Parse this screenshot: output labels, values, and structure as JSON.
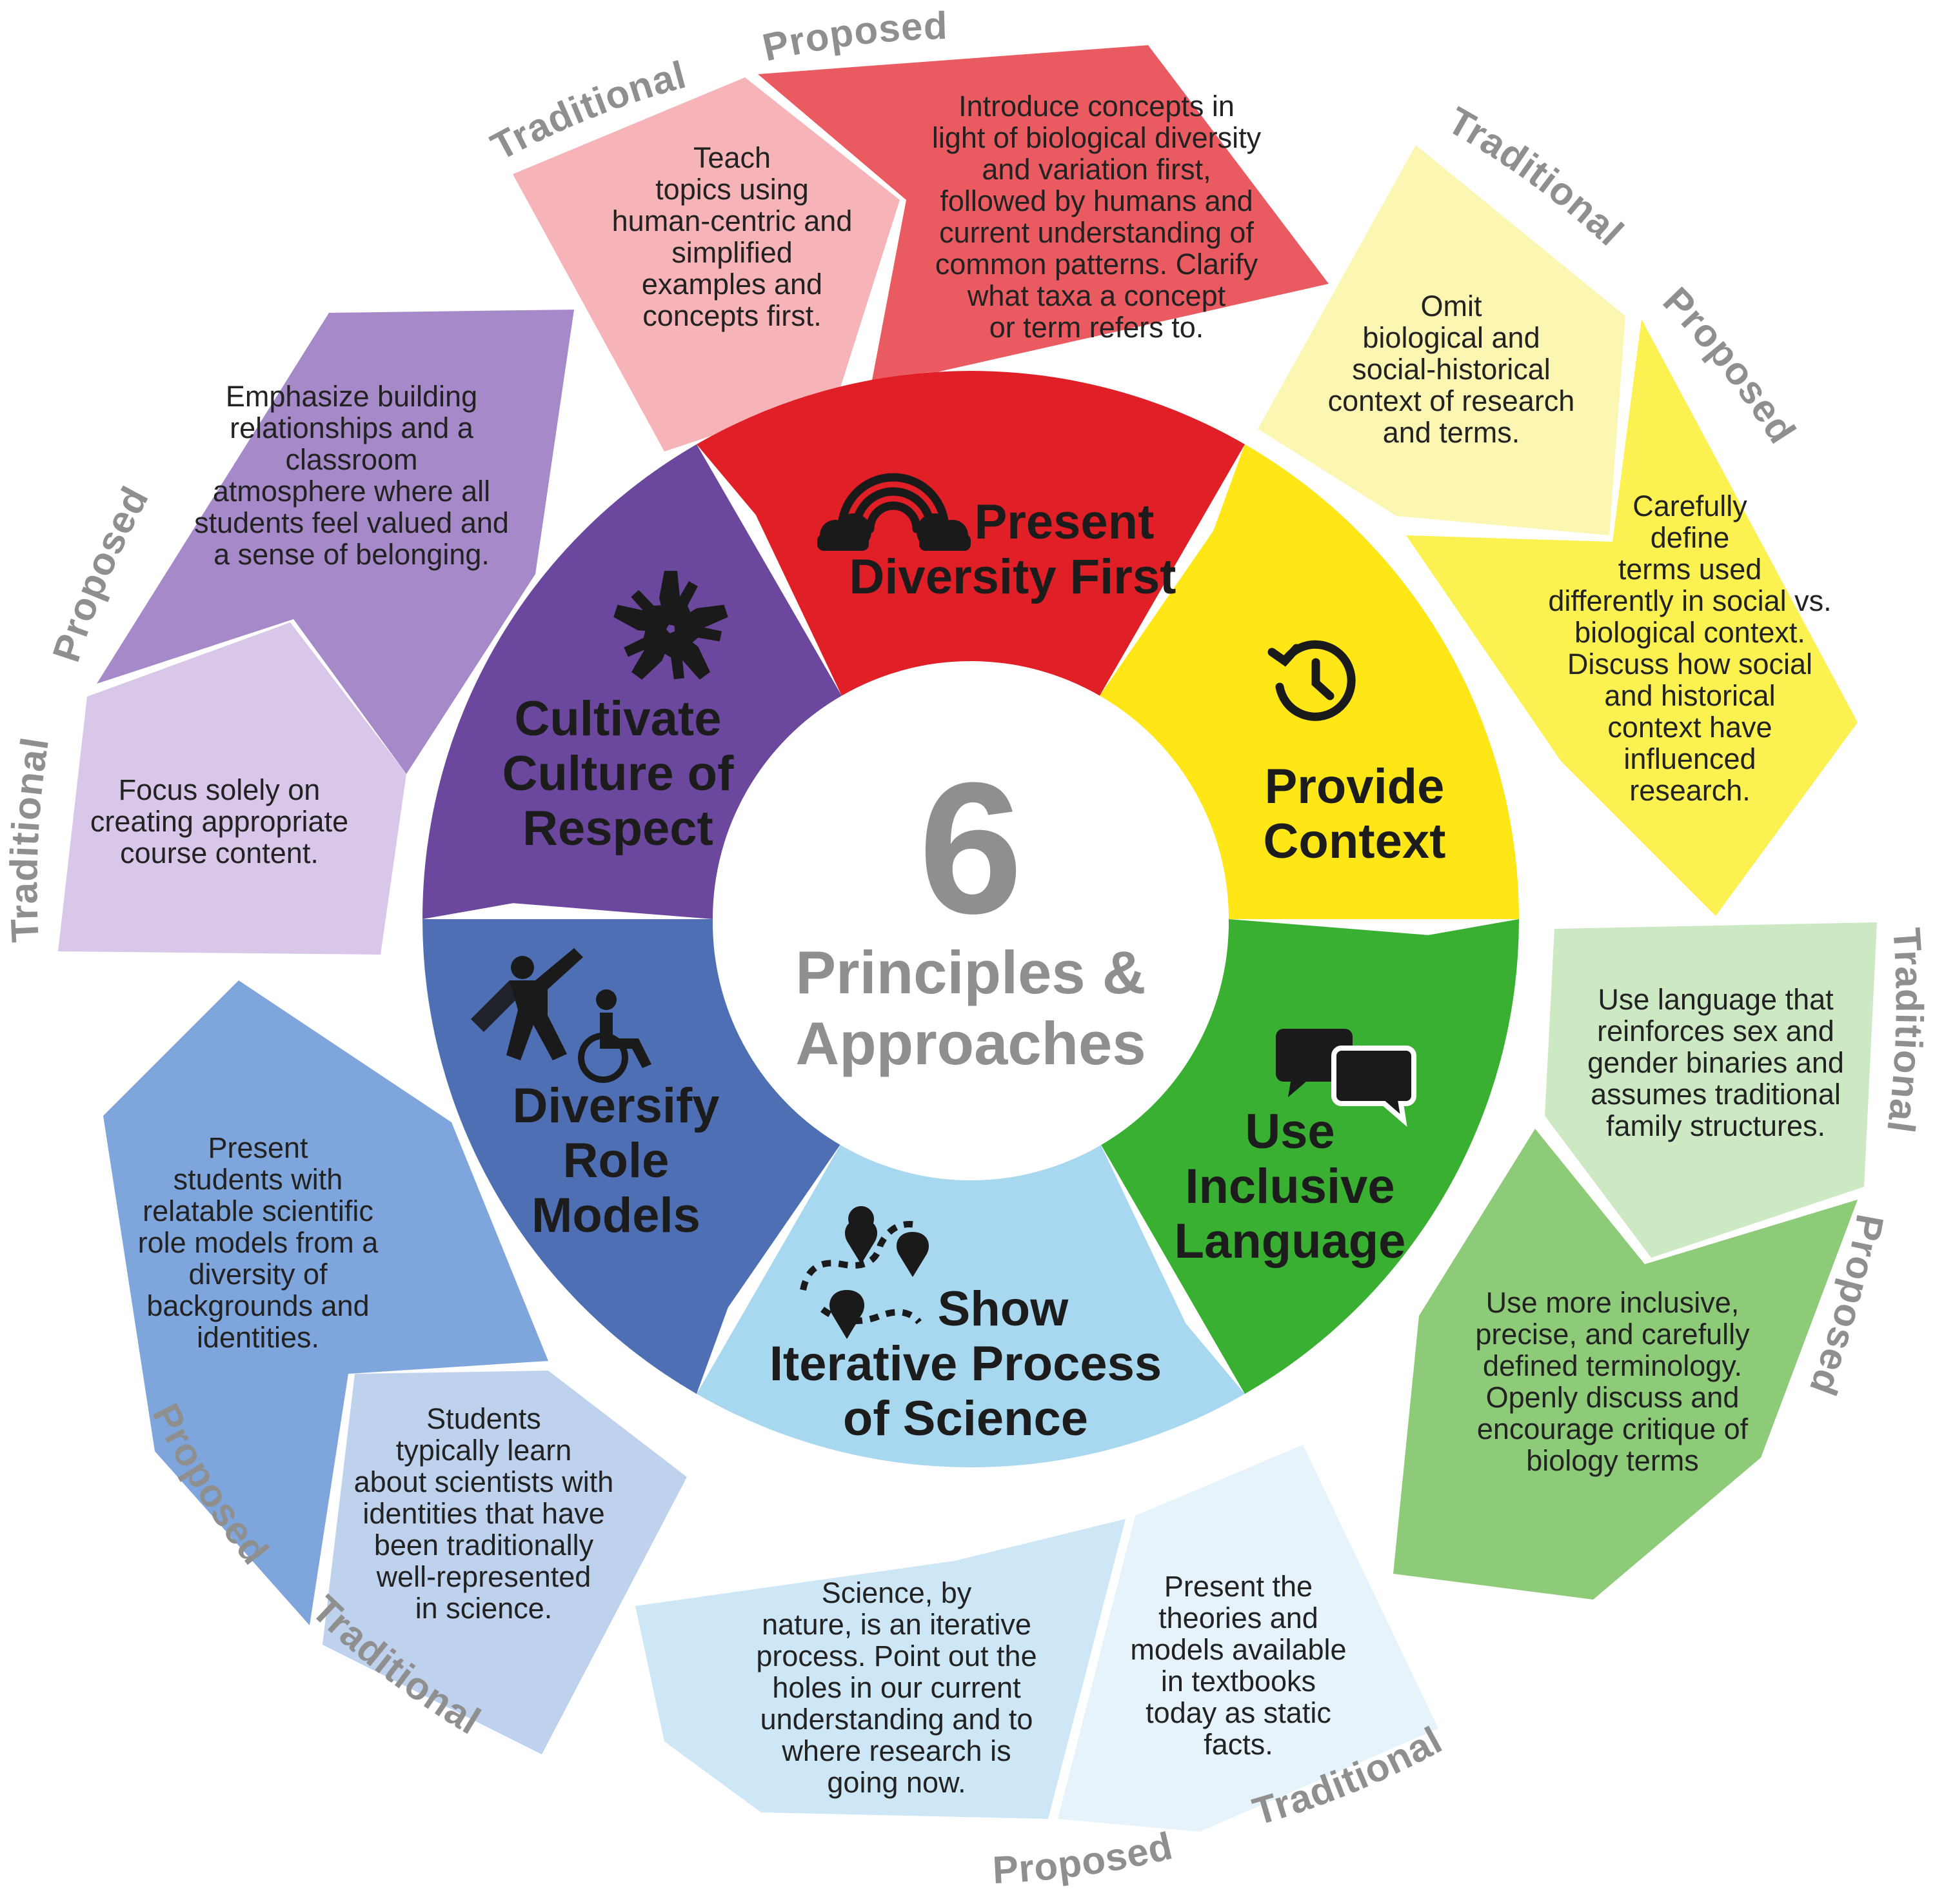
{
  "center": {
    "number": "6",
    "line1": "Principles &",
    "line2": "Approaches"
  },
  "labels": {
    "traditional": "Traditional",
    "proposed": "Proposed"
  },
  "principles": [
    {
      "id": "present-diversity-first",
      "title": [
        "Present",
        "Diversity First"
      ],
      "icon": "rainbow-cloud-icon",
      "color": "#e01f26",
      "traditional": {
        "color": "#f6b3b8",
        "text": [
          "Teach",
          "topics using",
          "human-centric and",
          "simplified",
          "examples and",
          "concepts first."
        ]
      },
      "proposed": {
        "color": "#ea5b61",
        "text": [
          "Introduce concepts in",
          "light of biological diversity",
          "and variation  first,",
          "followed by humans and",
          "current understanding of",
          "common patterns. Clarify",
          "what taxa a concept",
          "or term refers to."
        ]
      }
    },
    {
      "id": "provide-context",
      "title": [
        "Provide",
        "Context"
      ],
      "icon": "history-clock-icon",
      "color": "#ffe617",
      "traditional": {
        "color": "#fbf7b2",
        "text": [
          "Omit",
          "biological and",
          "social-historical",
          "context of research",
          "and terms."
        ]
      },
      "proposed": {
        "color": "#fbf150",
        "text": [
          "Carefully",
          "define",
          "terms used",
          "differently in social vs.",
          "biological context.",
          "Discuss how social",
          "and historical",
          "context have",
          "influenced",
          "research."
        ]
      }
    },
    {
      "id": "use-inclusive-language",
      "title": [
        "Use",
        "Inclusive",
        "Language"
      ],
      "icon": "speech-bubbles-icon",
      "color": "#3ab033",
      "traditional": {
        "color": "#cde9c3",
        "text": [
          "Use language that",
          "reinforces sex and",
          "gender binaries and",
          "assumes traditional",
          "family structures."
        ]
      },
      "proposed": {
        "color": "#8dcb78",
        "text": [
          "Use more inclusive,",
          "precise, and carefully",
          "defined terminology.",
          "Openly discuss and",
          "encourage critique of",
          "biology terms"
        ]
      }
    },
    {
      "id": "show-iterative-process",
      "title": [
        "Show",
        "Iterative Process",
        "of Science"
      ],
      "icon": "route-map-icon",
      "color": "#a8d8f0",
      "traditional": {
        "color": "#e6f3fb",
        "text": [
          "Present the",
          "theories and",
          "models available",
          "in textbooks",
          "today as static",
          "facts."
        ]
      },
      "proposed": {
        "color": "#cde7f7",
        "text": [
          "Science, by",
          "nature, is an iterative",
          "process. Point out the",
          "holes in our current",
          "understanding and to",
          "where research is",
          "going now."
        ]
      }
    },
    {
      "id": "diversify-role-models",
      "title": [
        "Diversify",
        "Role",
        "Models"
      ],
      "icon": "superhero-wheelchair-icon",
      "color": "#4f6fb4",
      "traditional": {
        "color": "#bed2ee",
        "text": [
          "Students",
          "typically learn",
          "about scientists with",
          "identities that have",
          "been traditionally",
          "well-represented",
          "in science."
        ]
      },
      "proposed": {
        "color": "#7fa6dc",
        "text": [
          "Present",
          "students with",
          "relatable scientific",
          "role models from a",
          "diversity of",
          "backgrounds and",
          "identities."
        ]
      }
    },
    {
      "id": "cultivate-culture-of-respect",
      "title": [
        "Cultivate",
        "Culture of",
        "Respect"
      ],
      "icon": "joined-hands-icon",
      "color": "#6b489d",
      "traditional": {
        "color": "#d8c7e9",
        "text": [
          "Focus solely on",
          "creating appropriate",
          "course content."
        ]
      },
      "proposed": {
        "color": "#a589c8",
        "text": [
          "Emphasize building",
          "relationships and a",
          "classroom",
          "atmosphere where all",
          "students feel valued and",
          "a sense of belonging."
        ]
      }
    }
  ]
}
